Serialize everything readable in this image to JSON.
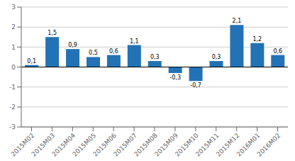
{
  "chart_data": {
    "type": "bar",
    "categories": [
      "2015M02",
      "2015M03",
      "2015M04",
      "2015M05",
      "2015M06",
      "2015M07",
      "2015M08",
      "2015M09",
      "2015M10",
      "2015M11",
      "2015M12",
      "2016M01",
      "2016M02"
    ],
    "values": [
      0.1,
      1.5,
      0.9,
      0.5,
      0.6,
      1.1,
      0.3,
      -0.3,
      -0.7,
      0.3,
      2.1,
      1.2,
      0.6
    ],
    "value_labels": [
      "0,1",
      "1,5",
      "0,9",
      "0,5",
      "0,6",
      "1,1",
      "0,3",
      "-0,3",
      "-0,7",
      "0,3",
      "2,1",
      "1,2",
      "0,6"
    ],
    "data_labels": true,
    "color": "#2272b5",
    "ylim": [
      -3,
      3
    ],
    "yticks": [
      -3,
      -2,
      -1,
      0,
      1,
      2,
      3
    ],
    "grid": true
  }
}
